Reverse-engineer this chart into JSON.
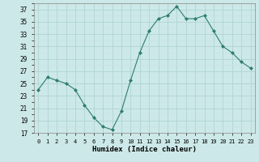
{
  "x": [
    0,
    1,
    2,
    3,
    4,
    5,
    6,
    7,
    8,
    9,
    10,
    11,
    12,
    13,
    14,
    15,
    16,
    17,
    18,
    19,
    20,
    21,
    22,
    23
  ],
  "y": [
    24,
    26,
    25.5,
    25,
    24,
    21.5,
    19.5,
    18,
    17.5,
    20.5,
    25.5,
    30,
    33.5,
    35.5,
    36,
    37.5,
    35.5,
    35.5,
    36,
    33.5,
    31,
    30,
    28.5,
    27.5
  ],
  "xlabel": "Humidex (Indice chaleur)",
  "line_color": "#2e7d6e",
  "marker": "D",
  "marker_size": 2,
  "bg_color": "#cce8e8",
  "grid_major_color": "#aacccc",
  "grid_minor_color": "#ddeeed",
  "ylim": [
    17,
    38
  ],
  "yticks": [
    17,
    19,
    21,
    23,
    25,
    27,
    29,
    31,
    33,
    35,
    37
  ],
  "xticks": [
    0,
    1,
    2,
    3,
    4,
    5,
    6,
    7,
    8,
    9,
    10,
    11,
    12,
    13,
    14,
    15,
    16,
    17,
    18,
    19,
    20,
    21,
    22,
    23
  ]
}
